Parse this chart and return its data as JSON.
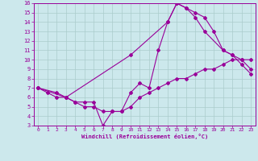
{
  "xlabel": "Windchill (Refroidissement éolien,°C)",
  "bg_color": "#cce8ec",
  "line_color": "#990099",
  "grid_color": "#aacccc",
  "xlim": [
    -0.5,
    23.5
  ],
  "ylim": [
    3,
    16
  ],
  "xticks": [
    0,
    1,
    2,
    3,
    4,
    5,
    6,
    7,
    8,
    9,
    10,
    11,
    12,
    13,
    14,
    15,
    16,
    17,
    18,
    19,
    20,
    21,
    22,
    23
  ],
  "yticks": [
    3,
    4,
    5,
    6,
    7,
    8,
    9,
    10,
    11,
    12,
    13,
    14,
    15,
    16
  ],
  "series": [
    {
      "x": [
        0,
        1,
        2,
        3,
        4,
        5,
        6,
        7,
        8,
        9,
        10,
        11,
        12,
        13,
        14,
        15,
        16,
        17,
        18,
        19,
        20,
        21,
        22,
        23
      ],
      "y": [
        7,
        6.5,
        6,
        6,
        5.5,
        5,
        5,
        4.5,
        4.5,
        4.5,
        6.5,
        7.5,
        7,
        11,
        14,
        16,
        15.5,
        15,
        14.5,
        13,
        11,
        10.5,
        9.5,
        8.5
      ]
    },
    {
      "x": [
        0,
        2,
        3,
        4,
        5,
        6,
        7,
        8,
        9,
        10,
        11,
        12,
        13,
        14,
        15,
        16,
        17,
        18,
        19,
        20,
        21,
        22,
        23
      ],
      "y": [
        7,
        6.5,
        6,
        5.5,
        5.5,
        5.5,
        3,
        4.5,
        4.5,
        5,
        6,
        6.5,
        7,
        7.5,
        8,
        8,
        8.5,
        9,
        9,
        9.5,
        10,
        10,
        10
      ]
    },
    {
      "x": [
        0,
        3,
        10,
        14,
        15,
        16,
        17,
        18,
        20,
        21,
        22,
        23
      ],
      "y": [
        7,
        6,
        10.5,
        14,
        16,
        15.5,
        14.5,
        13,
        11,
        10.5,
        10,
        9
      ]
    }
  ]
}
